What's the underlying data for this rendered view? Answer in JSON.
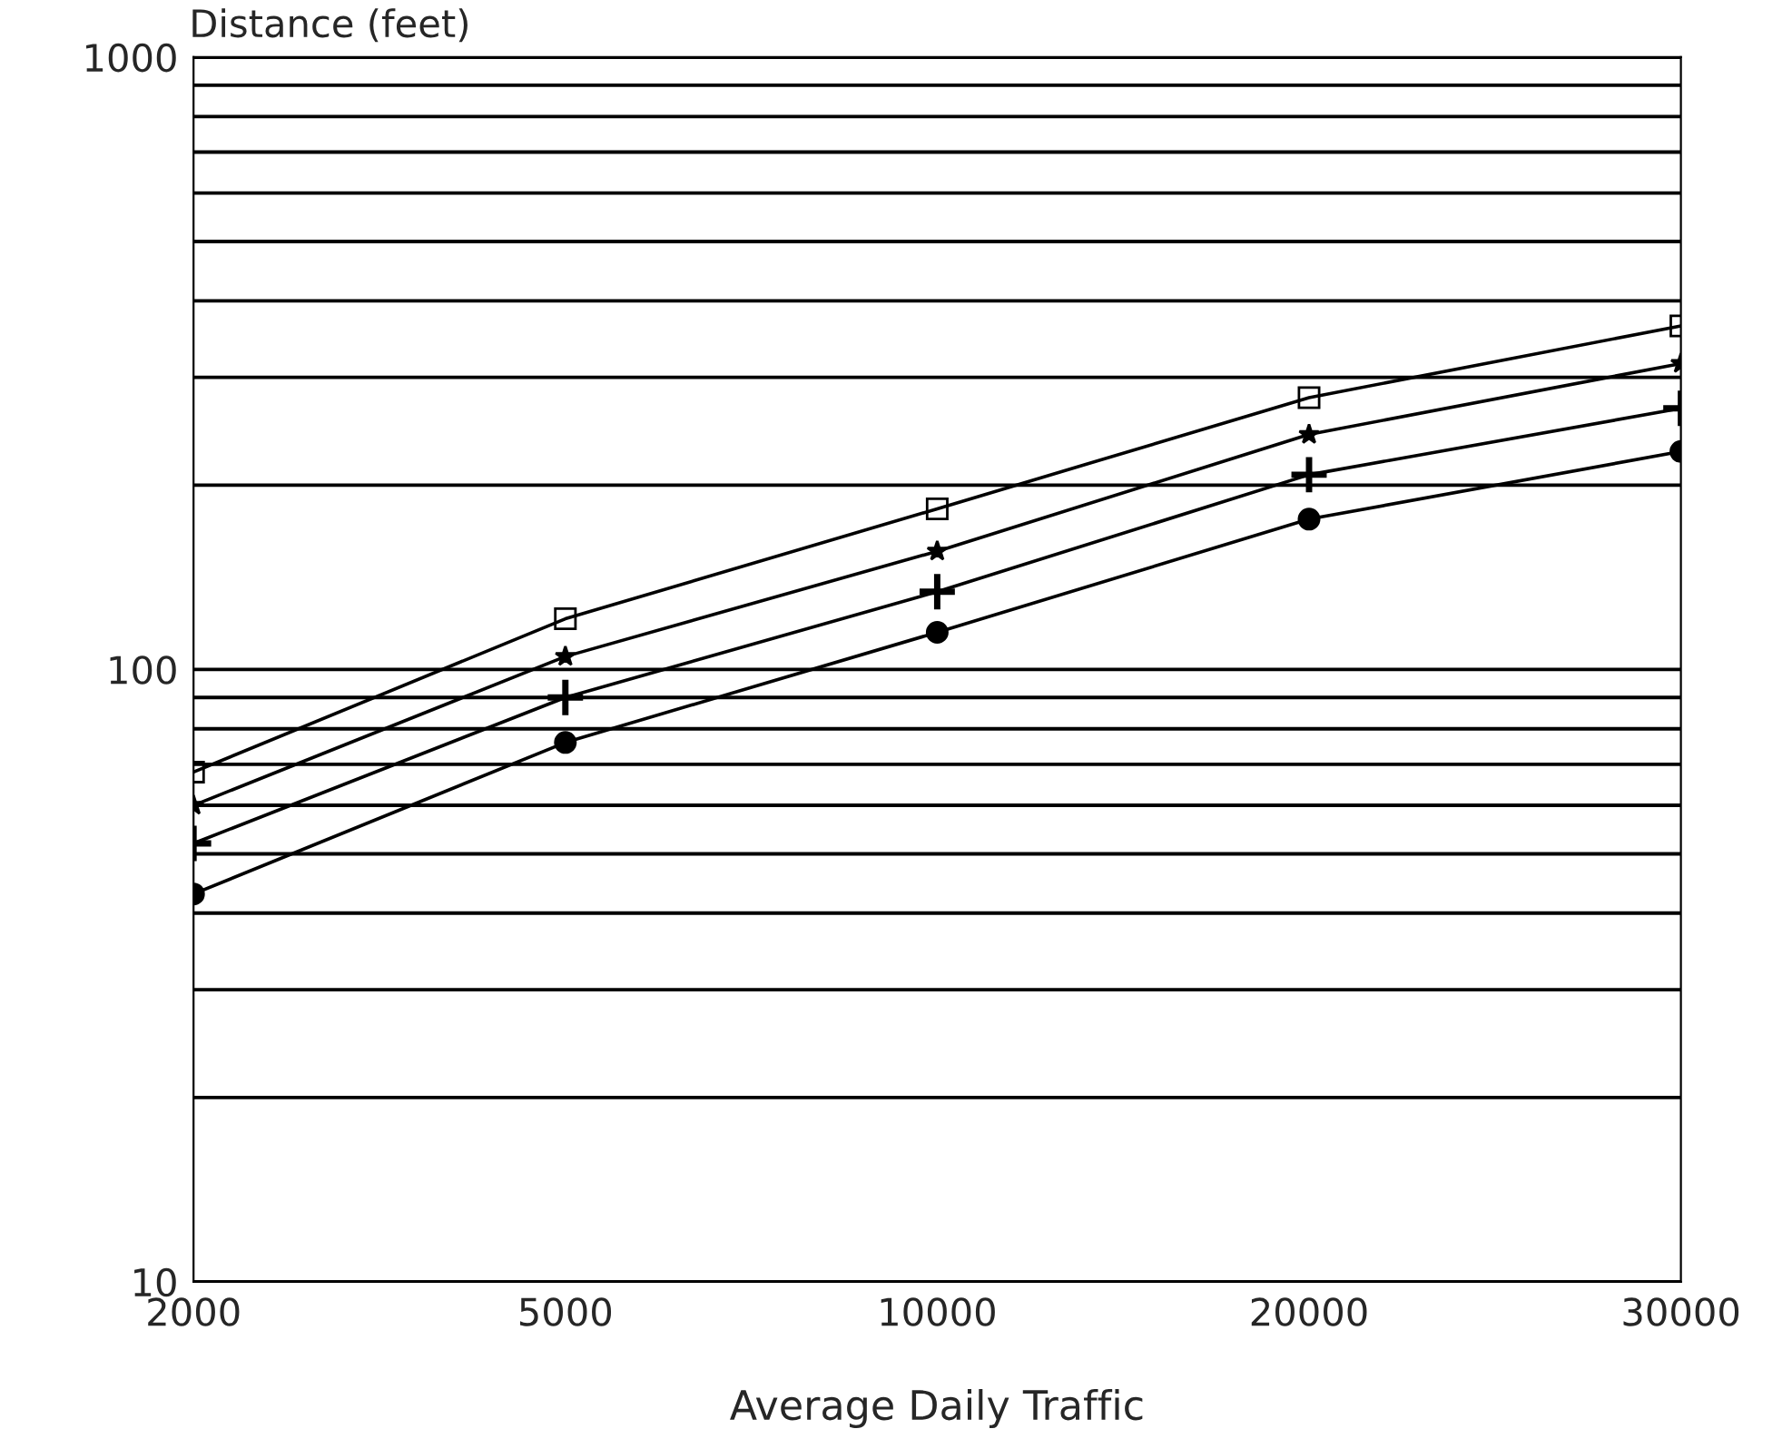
{
  "chart_data": {
    "type": "line",
    "xlabel": "Average Daily Traffic",
    "ylabel": "Distance (feet)",
    "categories": [
      "2000",
      "5000",
      "10000",
      "20000",
      "30000"
    ],
    "series": [
      {
        "color": "#000000",
        "marker": "square",
        "values": [
          68,
          121,
          183,
          278,
          364
        ]
      },
      {
        "color": "#000000",
        "marker": "star",
        "values": [
          60,
          105,
          156,
          242,
          316
        ]
      },
      {
        "color": "#000000",
        "marker": "cross",
        "values": [
          52,
          90,
          134,
          208,
          267
        ]
      },
      {
        "color": "#000000",
        "marker": "circle",
        "values": [
          43,
          76,
          115,
          176,
          227
        ]
      }
    ],
    "log": "y",
    "ylim": [
      10,
      1000
    ],
    "yticks": [
      10,
      {
        "value": 20,
        "label": null
      },
      {
        "value": 30,
        "label": null
      },
      {
        "value": 40,
        "label": null
      },
      {
        "value": 50,
        "label": null
      },
      {
        "value": 60,
        "label": null
      },
      {
        "value": 70,
        "label": null
      },
      {
        "value": 80,
        "label": null
      },
      {
        "value": 90,
        "label": null
      },
      100,
      {
        "value": 200,
        "label": null
      },
      {
        "value": 300,
        "label": null
      },
      {
        "value": 400,
        "label": null
      },
      {
        "value": 500,
        "label": null
      },
      {
        "value": 600,
        "label": null
      },
      {
        "value": 700,
        "label": null
      },
      {
        "value": 800,
        "label": null
      },
      {
        "value": 900,
        "label": null
      },
      1000
    ],
    "grid": "y",
    "legend": false
  }
}
